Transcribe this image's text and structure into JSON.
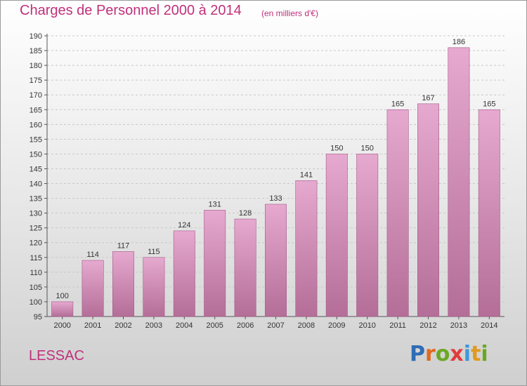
{
  "title": "Charges de Personnel 2000 à 2014",
  "subtitle": "(en milliers d'€)",
  "commune": "LESSAC",
  "logo": {
    "text": "Proxiti",
    "letters": [
      {
        "char": "P",
        "color": "#2f6db5"
      },
      {
        "char": "r",
        "color": "#e06a1e"
      },
      {
        "char": "o",
        "color": "#6aa823"
      },
      {
        "char": "x",
        "color": "#e23b3b"
      },
      {
        "char": "i",
        "color": "#3a9ad9"
      },
      {
        "char": "t",
        "color": "#e09a1e"
      },
      {
        "char": "i",
        "color": "#6aa823"
      }
    ]
  },
  "colors": {
    "accent": "#c0307a",
    "bar_top": "#e6a9cf",
    "bar_bottom": "#b46e98",
    "bar_edge": "#a45b88"
  },
  "chart_data": {
    "type": "bar",
    "categories": [
      "2000",
      "2001",
      "2002",
      "2003",
      "2004",
      "2005",
      "2006",
      "2007",
      "2008",
      "2009",
      "2010",
      "2011",
      "2012",
      "2013",
      "2014"
    ],
    "values": [
      100,
      114,
      117,
      115,
      124,
      131,
      128,
      133,
      141,
      150,
      150,
      165,
      167,
      186,
      165
    ],
    "ylim": [
      95,
      190
    ],
    "yticks": [
      95,
      100,
      105,
      110,
      115,
      120,
      125,
      130,
      135,
      140,
      145,
      150,
      155,
      160,
      165,
      170,
      175,
      180,
      185,
      190
    ],
    "grid": true
  }
}
